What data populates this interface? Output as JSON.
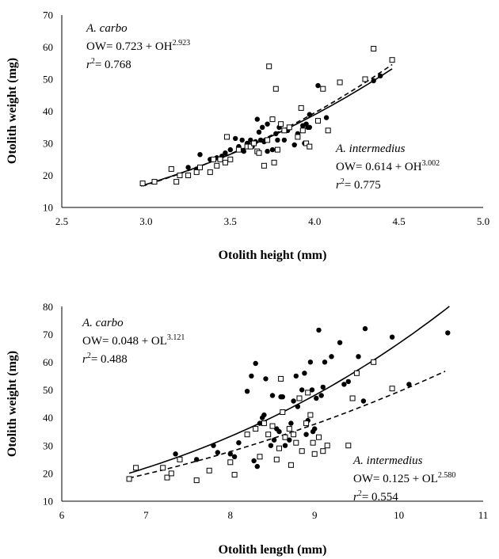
{
  "chart_data": [
    {
      "type": "scatter",
      "xlabel": "Otolith height (mm)",
      "ylabel": "Otolith weight (mg)",
      "xlim": [
        2.5,
        5.0
      ],
      "ylim": [
        10,
        70
      ],
      "xticks": [
        "2.5",
        "3.0",
        "3.5",
        "4.0",
        "4.5",
        "5.0"
      ],
      "yticks": [
        "10",
        "20",
        "30",
        "40",
        "50",
        "60",
        "70"
      ],
      "grid": false,
      "annotations": {
        "carbo": {
          "species": "A. carbo",
          "eq_prefix": "OW= 0.723 + OH",
          "eq_exp": "2.923",
          "r_var": "r",
          "r_sup": "2",
          "r_val": "= 0.768"
        },
        "intermedius": {
          "species": "A. intermedius",
          "eq_prefix": "OW= 0.614 + OH",
          "eq_exp": "3.002",
          "r_var": "r",
          "r_sup": "2",
          "r_val": "= 0.775"
        }
      },
      "series": [
        {
          "marker": "filled-circle",
          "points": [
            [
              3.25,
              22.5
            ],
            [
              3.3,
              22
            ],
            [
              3.32,
              26.5
            ],
            [
              3.38,
              25
            ],
            [
              3.4,
              25
            ],
            [
              3.42,
              25.5
            ],
            [
              3.45,
              26
            ],
            [
              3.47,
              27
            ],
            [
              3.5,
              28
            ],
            [
              3.53,
              31.5
            ],
            [
              3.55,
              29
            ],
            [
              3.57,
              31
            ],
            [
              3.58,
              27.5
            ],
            [
              3.6,
              30
            ],
            [
              3.61,
              29.5
            ],
            [
              3.62,
              31
            ],
            [
              3.63,
              29
            ],
            [
              3.65,
              30.5
            ],
            [
              3.66,
              37.5
            ],
            [
              3.67,
              33.5
            ],
            [
              3.68,
              31
            ],
            [
              3.69,
              35
            ],
            [
              3.7,
              30.5
            ],
            [
              3.72,
              36
            ],
            [
              3.72,
              27.5
            ],
            [
              3.75,
              28
            ],
            [
              3.77,
              33
            ],
            [
              3.78,
              31
            ],
            [
              3.79,
              35
            ],
            [
              3.82,
              31
            ],
            [
              3.84,
              34
            ],
            [
              3.88,
              29.5
            ],
            [
              3.9,
              33
            ],
            [
              3.93,
              35.5
            ],
            [
              3.94,
              30
            ],
            [
              3.95,
              36
            ],
            [
              3.96,
              35
            ],
            [
              3.97,
              39
            ],
            [
              3.97,
              35
            ],
            [
              4.02,
              48
            ],
            [
              4.07,
              38
            ],
            [
              4.35,
              49.5
            ],
            [
              4.39,
              51
            ]
          ]
        },
        {
          "marker": "open-square",
          "points": [
            [
              2.98,
              17.5
            ],
            [
              3.05,
              18
            ],
            [
              3.15,
              22
            ],
            [
              3.18,
              18
            ],
            [
              3.2,
              20
            ],
            [
              3.25,
              20
            ],
            [
              3.3,
              21
            ],
            [
              3.32,
              22.5
            ],
            [
              3.38,
              21
            ],
            [
              3.4,
              25
            ],
            [
              3.42,
              23
            ],
            [
              3.44,
              25
            ],
            [
              3.47,
              24
            ],
            [
              3.48,
              32
            ],
            [
              3.5,
              25
            ],
            [
              3.55,
              28
            ],
            [
              3.6,
              29
            ],
            [
              3.62,
              29
            ],
            [
              3.64,
              30
            ],
            [
              3.66,
              27.5
            ],
            [
              3.67,
              27
            ],
            [
              3.7,
              23
            ],
            [
              3.72,
              31
            ],
            [
              3.73,
              54
            ],
            [
              3.75,
              37.5
            ],
            [
              3.76,
              24
            ],
            [
              3.77,
              47
            ],
            [
              3.78,
              28
            ],
            [
              3.8,
              36
            ],
            [
              3.82,
              34
            ],
            [
              3.85,
              35
            ],
            [
              3.9,
              32
            ],
            [
              3.92,
              41
            ],
            [
              3.93,
              34
            ],
            [
              3.95,
              30
            ],
            [
              3.97,
              29
            ],
            [
              4.02,
              37
            ],
            [
              4.05,
              47
            ],
            [
              4.08,
              34
            ],
            [
              4.15,
              49
            ],
            [
              4.3,
              50
            ],
            [
              4.35,
              59.5
            ],
            [
              4.46,
              56
            ]
          ]
        }
      ],
      "fits": [
        {
          "style": "solid",
          "intercept": 0.723,
          "exponent": 2.923,
          "x_range": [
            2.97,
            4.46
          ]
        },
        {
          "style": "dashed",
          "intercept": 0.614,
          "exponent": 3.002,
          "x_range": [
            2.98,
            4.46
          ]
        }
      ]
    },
    {
      "type": "scatter",
      "xlabel": "Otolith length (mm)",
      "ylabel": "Otolith weight (mg)",
      "xlim": [
        6,
        11
      ],
      "ylim": [
        10,
        80
      ],
      "xticks": [
        "6",
        "7",
        "8",
        "9",
        "10",
        "11"
      ],
      "yticks": [
        "10",
        "20",
        "30",
        "40",
        "50",
        "60",
        "70",
        "80"
      ],
      "grid": false,
      "annotations": {
        "carbo": {
          "species": "A. carbo",
          "eq_prefix": "OW= 0.048 + OL",
          "eq_exp": "3.121",
          "r_var": "r",
          "r_sup": "2",
          "r_val": "= 0.488"
        },
        "intermedius": {
          "species": "A. intermedius",
          "eq_prefix": "OW= 0.125 + OL",
          "eq_exp": "2.580",
          "r_var": "r",
          "r_sup": "2",
          "r_val": "= 0.554"
        }
      },
      "series": [
        {
          "marker": "filled-circle",
          "points": [
            [
              7.35,
              27
            ],
            [
              7.6,
              25
            ],
            [
              7.8,
              30
            ],
            [
              7.85,
              27.5
            ],
            [
              8.0,
              27
            ],
            [
              8.05,
              26
            ],
            [
              8.1,
              31
            ],
            [
              8.2,
              49.5
            ],
            [
              8.25,
              55
            ],
            [
              8.28,
              24.5
            ],
            [
              8.3,
              59.5
            ],
            [
              8.32,
              22.5
            ],
            [
              8.35,
              38
            ],
            [
              8.38,
              40
            ],
            [
              8.4,
              41
            ],
            [
              8.42,
              54
            ],
            [
              8.45,
              34
            ],
            [
              8.48,
              30
            ],
            [
              8.5,
              48
            ],
            [
              8.52,
              32
            ],
            [
              8.55,
              36
            ],
            [
              8.58,
              35
            ],
            [
              8.6,
              47.5
            ],
            [
              8.62,
              47.5
            ],
            [
              8.65,
              30
            ],
            [
              8.7,
              32
            ],
            [
              8.72,
              38
            ],
            [
              8.75,
              46
            ],
            [
              8.78,
              55
            ],
            [
              8.8,
              44
            ],
            [
              8.85,
              50
            ],
            [
              8.88,
              56
            ],
            [
              8.9,
              34
            ],
            [
              8.92,
              39
            ],
            [
              8.95,
              60
            ],
            [
              8.97,
              50
            ],
            [
              8.98,
              35
            ],
            [
              9.0,
              36
            ],
            [
              9.02,
              47
            ],
            [
              9.05,
              71.5
            ],
            [
              9.08,
              48
            ],
            [
              9.1,
              51
            ],
            [
              9.12,
              60
            ],
            [
              9.2,
              62
            ],
            [
              9.3,
              67
            ],
            [
              9.35,
              52
            ],
            [
              9.4,
              53
            ],
            [
              9.52,
              62
            ],
            [
              9.58,
              46
            ],
            [
              9.6,
              72
            ],
            [
              9.92,
              69
            ],
            [
              10.12,
              52
            ],
            [
              10.58,
              70.5
            ]
          ]
        },
        {
          "marker": "open-square",
          "points": [
            [
              6.8,
              18
            ],
            [
              6.88,
              22
            ],
            [
              7.2,
              22
            ],
            [
              7.25,
              18.5
            ],
            [
              7.3,
              20
            ],
            [
              7.4,
              25
            ],
            [
              7.6,
              17.5
            ],
            [
              7.75,
              21
            ],
            [
              8.0,
              24
            ],
            [
              8.05,
              19.5
            ],
            [
              8.2,
              34
            ],
            [
              8.3,
              36
            ],
            [
              8.35,
              26
            ],
            [
              8.4,
              38
            ],
            [
              8.45,
              34
            ],
            [
              8.5,
              37
            ],
            [
              8.55,
              25
            ],
            [
              8.58,
              29
            ],
            [
              8.6,
              54
            ],
            [
              8.62,
              42
            ],
            [
              8.65,
              33
            ],
            [
              8.7,
              36
            ],
            [
              8.72,
              23
            ],
            [
              8.75,
              34
            ],
            [
              8.78,
              31
            ],
            [
              8.82,
              47
            ],
            [
              8.85,
              28
            ],
            [
              8.9,
              38
            ],
            [
              8.92,
              49
            ],
            [
              8.95,
              41
            ],
            [
              8.98,
              31
            ],
            [
              9.0,
              27
            ],
            [
              9.05,
              33
            ],
            [
              9.1,
              28
            ],
            [
              9.15,
              30
            ],
            [
              9.4,
              30
            ],
            [
              9.45,
              47
            ],
            [
              9.5,
              56
            ],
            [
              9.7,
              60
            ],
            [
              9.92,
              50.5
            ]
          ]
        }
      ],
      "fits": [
        {
          "style": "solid",
          "intercept": 0.048,
          "exponent": 3.121,
          "x_range": [
            6.8,
            10.6
          ]
        },
        {
          "style": "dashed",
          "intercept": 0.125,
          "exponent": 2.58,
          "x_range": [
            6.8,
            10.55
          ]
        }
      ]
    }
  ]
}
